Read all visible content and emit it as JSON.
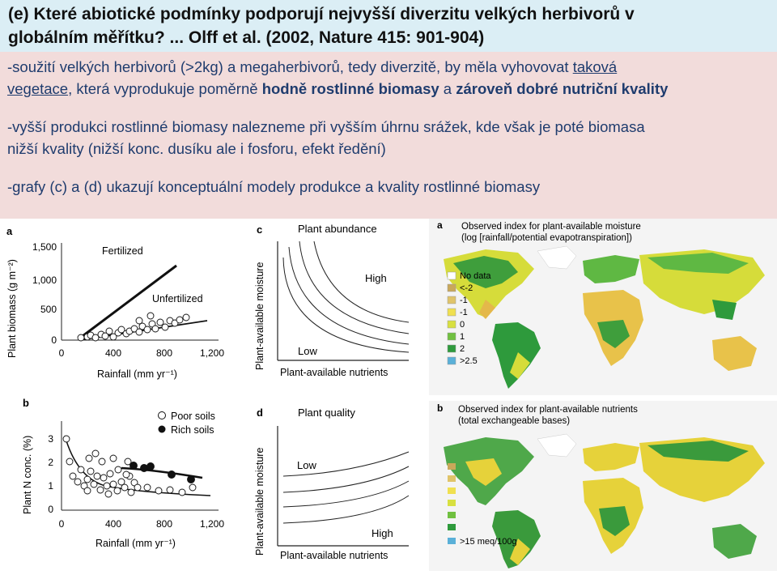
{
  "title": {
    "line1": "(e) Které abiotické podmínky podporují nejvyšší diverzitu velkých herbivorů v",
    "line2": "globálním měřítku? ... Olff et al. (2002, Nature  415: 901-904)"
  },
  "body": {
    "p1_a": "-soužití velkých herbivorů (>2kg) a megaherbivorů, tedy diverzitě, by měla vyhovovat ",
    "p1_u": "taková",
    "p1_b_u": "vegetace",
    "p1_c": ", která vyprodukuje poměrně ",
    "p1_bold1": "hodně rostlinné biomasy",
    "p1_d": " a ",
    "p1_bold2": "zároveň dobré nutriční kvality",
    "p2_line1": "-vyšší produkci rostlinné biomasy nalezneme při vyšším úhrnu srážek, kde však je poté biomasa",
    "p2_line2": "nižší kvality (nižší konc. dusíku ale i fosforu, efekt ředění)",
    "p3": "-grafy (c) a (d) ukazují konceptuální modely produkce a kvality rostlinné biomasy"
  },
  "panel_a": {
    "letter": "a",
    "ylabel": "Plant biomass (g m⁻²)",
    "xlabel": "Rainfall (mm yr⁻¹)",
    "yticks": [
      "1,500",
      "1,000",
      "500",
      "0"
    ],
    "xticks": [
      "0",
      "400",
      "800",
      "1,200"
    ],
    "label_fertilized": "Fertilized",
    "label_unfertilized": "Unfertilized"
  },
  "panel_b": {
    "letter": "b",
    "ylabel": "Plant N conc. (%)",
    "xlabel": "Rainfall (mm yr⁻¹)",
    "yticks": [
      "3",
      "2",
      "1",
      "0"
    ],
    "xticks": [
      "0",
      "400",
      "800",
      "1,200"
    ],
    "legend_poor": "Poor soils",
    "legend_rich": "Rich soils"
  },
  "panel_c": {
    "letter": "c",
    "title": "Plant abundance",
    "ylabel": "Plant-available moisture",
    "xlabel": "Plant-available nutrients",
    "high": "High",
    "low": "Low"
  },
  "panel_d": {
    "letter": "d",
    "title": "Plant quality",
    "ylabel": "Plant-available moisture",
    "xlabel": "Plant-available nutrients",
    "high": "High",
    "low": "Low"
  },
  "map_a": {
    "letter": "a",
    "title1": "Observed index for plant-available moisture",
    "title2": "(log [rainfall/potential evapotranspiration])",
    "legend": [
      "No data",
      "<-2",
      "-1",
      "-1",
      "0",
      "1",
      "2",
      ">2.5"
    ],
    "colors": [
      "#ffffff",
      "#c9a85a",
      "#e0c46a",
      "#f0e050",
      "#d8e040",
      "#70c040",
      "#2e9a3c",
      "#5ab0d8"
    ]
  },
  "map_b": {
    "letter": "b",
    "title1": "Observed index for plant-available nutrients",
    "title2": "(total exchangeable bases)",
    "legend_last": ">15 meq/100g"
  }
}
